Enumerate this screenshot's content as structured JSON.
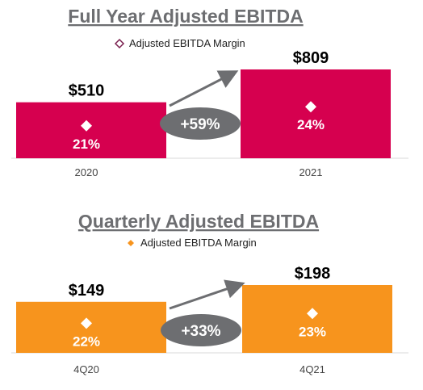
{
  "chart_data": [
    {
      "type": "bar",
      "title": "Full Year Adjusted EBITDA",
      "legend": "Adjusted EBITDA Margin",
      "categories": [
        "2020",
        "2021"
      ],
      "values": [
        510,
        809
      ],
      "value_labels": [
        "$510",
        "$809"
      ],
      "margins": [
        "21%",
        "24%"
      ],
      "growth": "+59%",
      "color": "#d6004f",
      "marker_color": "#7a1f4e"
    },
    {
      "type": "bar",
      "title": "Quarterly Adjusted EBITDA",
      "legend": "Adjusted EBITDA Margin",
      "categories": [
        "4Q20",
        "4Q21"
      ],
      "values": [
        149,
        198
      ],
      "value_labels": [
        "$149",
        "$198"
      ],
      "margins": [
        "22%",
        "23%"
      ],
      "growth": "+33%",
      "color": "#f7941d",
      "marker_color": "#f7941d"
    }
  ]
}
